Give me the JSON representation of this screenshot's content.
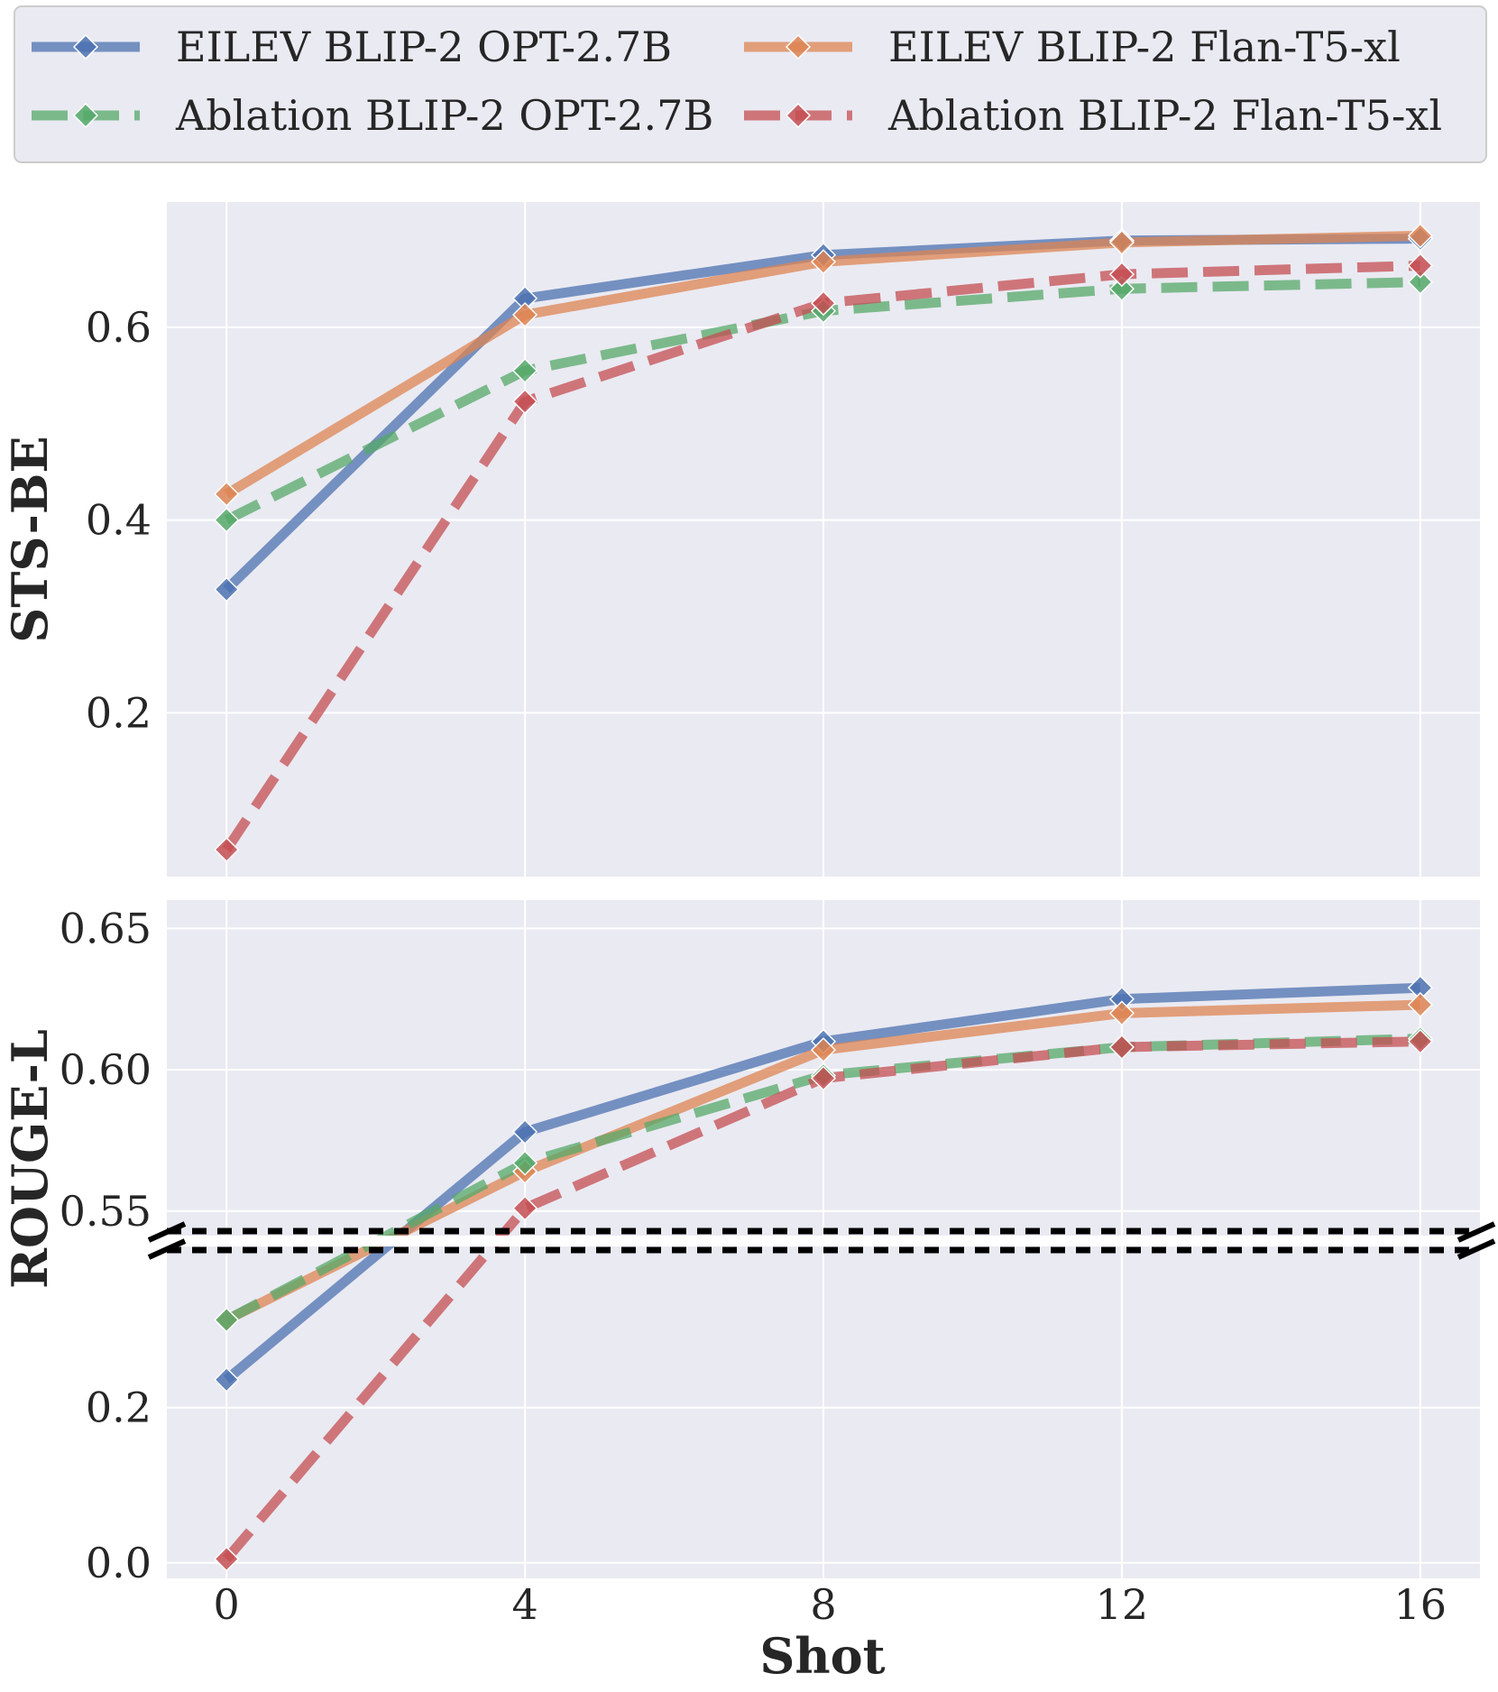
{
  "chart_data": {
    "type": "line",
    "x": [
      0,
      4,
      8,
      12,
      16
    ],
    "xlabel": "Shot",
    "xlim": [
      -0.8,
      16.8
    ],
    "legend_position": "top",
    "legend": [
      {
        "name": "EILEV BLIP-2 OPT-2.7B",
        "color": "#4c72b0",
        "style": "solid"
      },
      {
        "name": "Ablation BLIP-2 OPT-2.7B",
        "color": "#55a868",
        "style": "dashed"
      },
      {
        "name": "EILEV BLIP-2 Flan-T5-xl",
        "color": "#dd8452",
        "style": "solid"
      },
      {
        "name": "Ablation BLIP-2 Flan-T5-xl",
        "color": "#c44e52",
        "style": "dashed"
      }
    ],
    "panels": [
      {
        "ylabel": "STS-BE",
        "ylim": [
          0.03,
          0.73
        ],
        "yticks": [
          0.2,
          0.4,
          0.6
        ],
        "ytick_labels": [
          "0.2",
          "0.4",
          "0.6"
        ],
        "series": [
          {
            "name": "EILEV BLIP-2 OPT-2.7B",
            "values": [
              0.328,
              0.63,
              0.675,
              0.69,
              0.692
            ]
          },
          {
            "name": "EILEV BLIP-2 Flan-T5-xl",
            "values": [
              0.427,
              0.613,
              0.668,
              0.688,
              0.695
            ]
          },
          {
            "name": "Ablation BLIP-2 OPT-2.7B",
            "values": [
              0.4,
              0.555,
              0.617,
              0.64,
              0.647
            ]
          },
          {
            "name": "Ablation BLIP-2 Flan-T5-xl",
            "values": [
              0.058,
              0.523,
              0.625,
              0.655,
              0.664
            ]
          }
        ]
      },
      {
        "ylabel": "ROUGE-L",
        "broken_axis": true,
        "upper": {
          "ylim": [
            0.541,
            0.66
          ],
          "yticks": [
            0.55,
            0.6,
            0.65
          ],
          "ytick_labels": [
            "0.55",
            "0.60",
            "0.65"
          ]
        },
        "lower": {
          "ylim": [
            -0.02,
            0.41
          ],
          "yticks": [
            0.0,
            0.2
          ],
          "ytick_labels": [
            "0.0",
            "0.2"
          ]
        },
        "series": [
          {
            "name": "EILEV BLIP-2 OPT-2.7B",
            "values": [
              0.236,
              0.578,
              0.61,
              0.625,
              0.629
            ]
          },
          {
            "name": "EILEV BLIP-2 Flan-T5-xl",
            "values": [
              0.313,
              0.564,
              0.607,
              0.62,
              0.623
            ]
          },
          {
            "name": "Ablation BLIP-2 OPT-2.7B",
            "values": [
              0.313,
              0.567,
              0.598,
              0.608,
              0.611
            ]
          },
          {
            "name": "Ablation BLIP-2 Flan-T5-xl",
            "values": [
              0.005,
              0.551,
              0.597,
              0.608,
              0.61
            ]
          }
        ]
      }
    ]
  }
}
